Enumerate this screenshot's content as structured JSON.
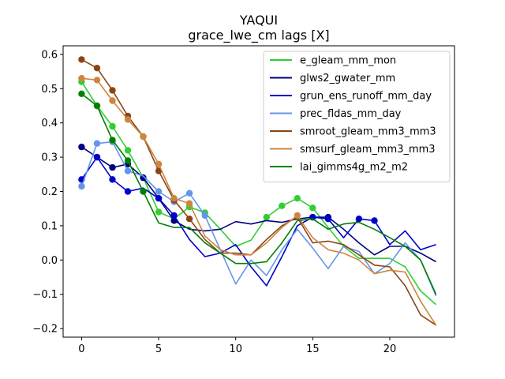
{
  "chart_data": {
    "type": "line",
    "title": "YAQUI",
    "subtitle": "grace_lwe_cm lags [X]",
    "xlabel": "",
    "ylabel": "",
    "xlim": [
      -1.2,
      24.2
    ],
    "ylim": [
      -0.225,
      0.625
    ],
    "xticks": [
      0,
      5,
      10,
      15,
      20
    ],
    "yticks": [
      -0.2,
      -0.1,
      0.0,
      0.1,
      0.2,
      0.3,
      0.4,
      0.5,
      0.6
    ],
    "ytick_labels": [
      "−0.2",
      "−0.1",
      "0.0",
      "0.1",
      "0.2",
      "0.3",
      "0.4",
      "0.5",
      "0.6"
    ],
    "legend_position": "top-right",
    "grid": false,
    "x": [
      0,
      1,
      2,
      3,
      4,
      5,
      6,
      7,
      8,
      9,
      10,
      11,
      12,
      13,
      14,
      15,
      16,
      17,
      18,
      19,
      20,
      21,
      22,
      23
    ],
    "series": [
      {
        "name": "e_gleam_mm_mon",
        "color": "#32cd32",
        "values": [
          0.52,
          0.45,
          0.39,
          0.32,
          0.24,
          0.14,
          0.12,
          0.155,
          0.138,
          0.09,
          0.04,
          0.058,
          0.125,
          0.158,
          0.18,
          0.152,
          0.095,
          0.04,
          0.005,
          0.005,
          0.005,
          -0.02,
          -0.09,
          -0.13
        ],
        "markers": [
          0,
          1,
          2,
          3,
          5,
          7,
          8,
          12,
          13,
          14,
          15
        ]
      },
      {
        "name": "glws2_gwater_mm",
        "color": "#000080",
        "values": [
          0.33,
          0.3,
          0.27,
          0.28,
          0.24,
          0.18,
          0.115,
          0.09,
          0.085,
          0.09,
          0.112,
          0.105,
          0.115,
          0.11,
          0.12,
          0.125,
          0.125,
          0.09,
          0.05,
          0.015,
          0.04,
          0.04,
          0.02,
          -0.005
        ],
        "markers": [
          0,
          1,
          2,
          3,
          4,
          5,
          6,
          15,
          16
        ]
      },
      {
        "name": "grun_ens_runoff_mm_day",
        "color": "#0000cd",
        "values": [
          0.235,
          0.3,
          0.235,
          0.2,
          0.21,
          0.18,
          0.13,
          0.06,
          0.01,
          0.02,
          0.045,
          -0.02,
          -0.075,
          0.01,
          0.1,
          0.125,
          0.12,
          0.065,
          0.12,
          0.115,
          0.045,
          0.085,
          0.03,
          0.045
        ],
        "markers": [
          0,
          1,
          2,
          3,
          5,
          6,
          15,
          16,
          18,
          19
        ]
      },
      {
        "name": "prec_fldas_mm_day",
        "color": "#6495ed",
        "values": [
          0.215,
          0.34,
          0.345,
          0.26,
          0.245,
          0.2,
          0.17,
          0.195,
          0.13,
          0.03,
          -0.07,
          0.0,
          -0.045,
          0.03,
          0.09,
          0.035,
          -0.025,
          0.04,
          0.025,
          -0.04,
          -0.01,
          0.05,
          0.0,
          -0.105
        ],
        "markers": [
          0,
          1,
          2,
          3,
          5,
          6,
          7,
          8
        ]
      },
      {
        "name": "smroot_gleam_mm3_mm3",
        "color": "#8b4513",
        "values": [
          0.585,
          0.56,
          0.495,
          0.42,
          0.36,
          0.26,
          0.175,
          0.12,
          0.06,
          0.02,
          0.02,
          0.015,
          0.06,
          0.1,
          0.125,
          0.05,
          0.055,
          0.045,
          0.015,
          -0.015,
          -0.02,
          -0.075,
          -0.16,
          -0.19
        ],
        "markers": [
          0,
          1,
          2,
          3,
          4,
          5,
          6,
          7
        ]
      },
      {
        "name": "smsurf_gleam_mm3_mm3",
        "color": "#cd853f",
        "values": [
          0.53,
          0.525,
          0.465,
          0.41,
          0.36,
          0.28,
          0.18,
          0.165,
          0.07,
          0.03,
          0.015,
          0.015,
          0.05,
          0.095,
          0.13,
          0.065,
          0.03,
          0.02,
          0.0,
          -0.04,
          -0.03,
          -0.035,
          -0.12,
          -0.19
        ],
        "markers": [
          0,
          1,
          2,
          3,
          4,
          5,
          6,
          7,
          14
        ]
      },
      {
        "name": "lai_gimms4g_m2_m2",
        "color": "#008000",
        "values": [
          0.485,
          0.45,
          0.35,
          0.29,
          0.2,
          0.108,
          0.095,
          0.095,
          0.05,
          0.02,
          -0.01,
          -0.01,
          -0.005,
          0.05,
          0.115,
          0.12,
          0.09,
          0.105,
          0.11,
          0.09,
          0.065,
          0.04,
          0.0,
          -0.1
        ],
        "markers": [
          0,
          1,
          2,
          3,
          4
        ]
      }
    ]
  }
}
